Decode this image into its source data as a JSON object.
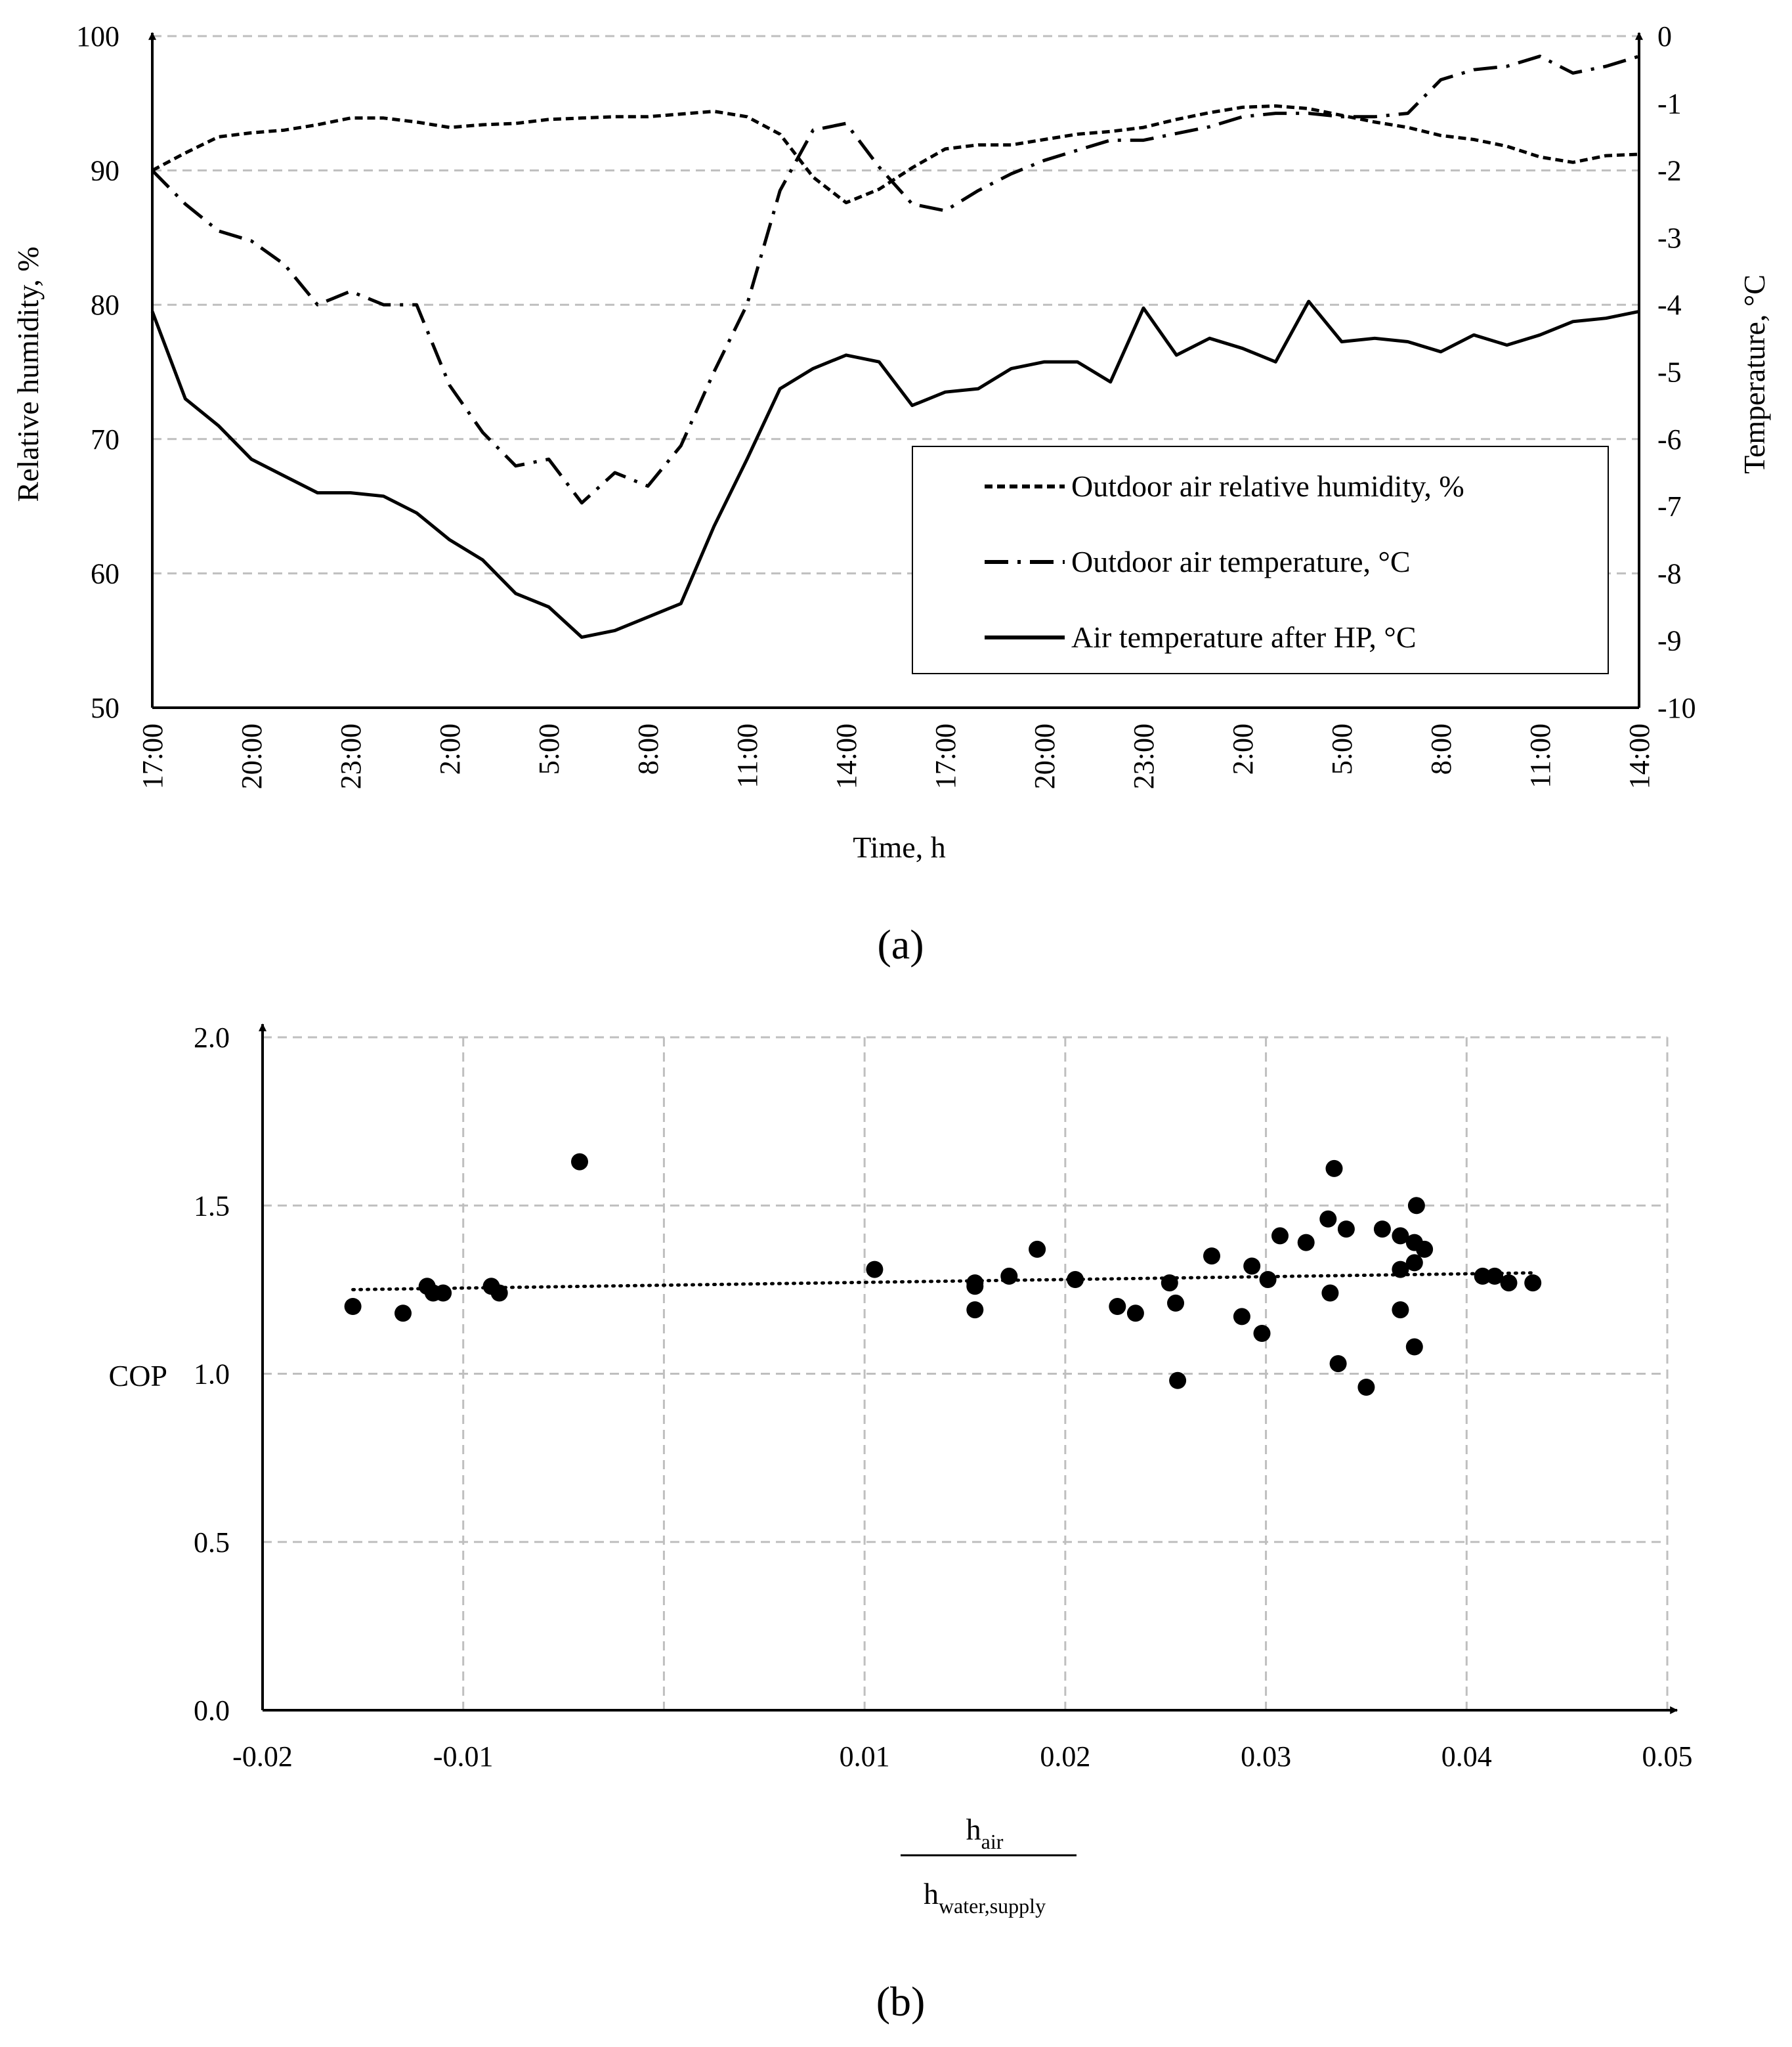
{
  "figure": {
    "caption_a": "(a)",
    "caption_b": "(b)"
  },
  "colors": {
    "ink": "#000000",
    "grid": "#bfbfbf",
    "background": "#ffffff"
  },
  "chart_data": [
    {
      "type": "line",
      "panel": "a",
      "xlabel": "Time, h",
      "ylabel_left": "Relative humidity, %",
      "ylabel_right": "Temperature, °C",
      "ylim_left": [
        50,
        100
      ],
      "ylim_right": [
        -10,
        0
      ],
      "yticks_left": [
        "50",
        "60",
        "70",
        "80",
        "90",
        "100"
      ],
      "yticks_right": [
        "-10",
        "-9",
        "-8",
        "-7",
        "-6",
        "-5",
        "-4",
        "-3",
        "-2",
        "-1",
        "0"
      ],
      "x_hours": [
        0,
        1,
        2,
        3,
        4,
        5,
        6,
        7,
        8,
        9,
        10,
        11,
        12,
        13,
        14,
        15,
        16,
        17,
        18,
        19,
        20,
        21,
        22,
        23,
        24,
        25,
        26,
        27,
        28,
        29,
        30,
        31,
        32,
        33,
        34,
        35,
        36,
        37,
        38,
        39,
        40,
        41,
        42,
        43,
        44,
        45
      ],
      "xtick_positions": [
        0,
        3,
        6,
        9,
        12,
        15,
        18,
        21,
        24,
        27,
        30,
        33,
        36,
        39,
        42,
        45
      ],
      "xtick_labels": [
        "17:00",
        "20:00",
        "23:00",
        "2:00",
        "5:00",
        "8:00",
        "11:00",
        "14:00",
        "17:00",
        "20:00",
        "23:00",
        "2:00",
        "5:00",
        "8:00",
        "11:00",
        "14:00"
      ],
      "legend_position": "lower-right",
      "series": [
        {
          "name": "Outdoor air relative humidity, %",
          "axis": "left",
          "style": "dashed",
          "values": [
            90.0,
            91.3,
            92.5,
            92.8,
            93.0,
            93.4,
            93.9,
            93.9,
            93.6,
            93.2,
            93.4,
            93.5,
            93.8,
            93.9,
            94.0,
            94.0,
            94.2,
            94.4,
            94.0,
            92.7,
            89.5,
            87.6,
            88.6,
            90.2,
            91.6,
            91.9,
            91.9,
            92.3,
            92.7,
            92.9,
            93.2,
            93.8,
            94.3,
            94.7,
            94.8,
            94.6,
            94.1,
            93.6,
            93.2,
            92.6,
            92.3,
            91.8,
            91.0,
            90.6,
            91.1,
            91.2
          ]
        },
        {
          "name": "Outdoor air temperature, °C",
          "axis": "right",
          "style": "dash-dot",
          "values": [
            -2.0,
            -2.5,
            -2.9,
            -3.05,
            -3.4,
            -4.0,
            -3.8,
            -4.0,
            -4.0,
            -5.2,
            -5.9,
            -6.4,
            -6.3,
            -6.95,
            -6.5,
            -6.7,
            -6.1,
            -5.0,
            -4.0,
            -2.3,
            -1.4,
            -1.3,
            -1.95,
            -2.5,
            -2.6,
            -2.3,
            -2.05,
            -1.85,
            -1.7,
            -1.55,
            -1.55,
            -1.45,
            -1.35,
            -1.2,
            -1.15,
            -1.15,
            -1.2,
            -1.2,
            -1.15,
            -0.65,
            -0.5,
            -0.45,
            -0.3,
            -0.55,
            -0.45,
            -0.3
          ]
        },
        {
          "name": "Air temperature after HP, °C",
          "axis": "right",
          "style": "solid",
          "values": [
            -4.1,
            -5.4,
            -5.8,
            -6.3,
            -6.55,
            -6.8,
            -6.8,
            -6.85,
            -7.1,
            -7.5,
            -7.8,
            -8.3,
            -8.5,
            -8.95,
            -8.85,
            -8.65,
            -8.45,
            -7.3,
            -6.3,
            -5.25,
            -4.95,
            -4.75,
            -4.85,
            -5.5,
            -5.3,
            -5.25,
            -4.95,
            -4.85,
            -4.85,
            -5.15,
            -4.05,
            -4.75,
            -4.5,
            -4.65,
            -4.85,
            -3.95,
            -4.55,
            -4.5,
            -4.55,
            -4.7,
            -4.45,
            -4.6,
            -4.45,
            -4.25,
            -4.2,
            -4.1
          ]
        }
      ]
    },
    {
      "type": "scatter",
      "panel": "b",
      "xlabel_numerator": "h",
      "xlabel_numerator_sub": "air",
      "xlabel_denominator": "h",
      "xlabel_denominator_sub": "water,supply",
      "ylabel": "COP",
      "xlim": [
        -0.02,
        0.05
      ],
      "ylim": [
        0.0,
        2.0
      ],
      "xticks": [
        "-0.02",
        "-0.01",
        "0.01",
        "0.02",
        "0.03",
        "0.04",
        "0.05"
      ],
      "xtick_values": [
        -0.02,
        -0.01,
        0.01,
        0.02,
        0.03,
        0.04,
        0.05
      ],
      "yticks": [
        "0.0",
        "0.5",
        "1.0",
        "1.5",
        "2.0"
      ],
      "ytick_values": [
        0.0,
        0.5,
        1.0,
        1.5,
        2.0
      ],
      "trendline": {
        "style": "dotted",
        "x": [
          -0.0155,
          0.0435
        ],
        "y": [
          1.25,
          1.3
        ]
      },
      "points": [
        [
          -0.0155,
          1.2
        ],
        [
          -0.013,
          1.18
        ],
        [
          -0.0118,
          1.26
        ],
        [
          -0.0115,
          1.24
        ],
        [
          -0.011,
          1.24
        ],
        [
          -0.0086,
          1.26
        ],
        [
          -0.0082,
          1.24
        ],
        [
          -0.0042,
          1.63
        ],
        [
          0.0105,
          1.31
        ],
        [
          0.0155,
          1.26
        ],
        [
          0.0155,
          1.19
        ],
        [
          0.0155,
          1.27
        ],
        [
          0.0172,
          1.29
        ],
        [
          0.0186,
          1.37
        ],
        [
          0.0205,
          1.28
        ],
        [
          0.0226,
          1.2
        ],
        [
          0.0235,
          1.18
        ],
        [
          0.0252,
          1.27
        ],
        [
          0.0255,
          1.21
        ],
        [
          0.0256,
          0.98
        ],
        [
          0.0273,
          1.35
        ],
        [
          0.0288,
          1.17
        ],
        [
          0.0293,
          1.32
        ],
        [
          0.0298,
          1.12
        ],
        [
          0.0301,
          1.28
        ],
        [
          0.0307,
          1.41
        ],
        [
          0.032,
          1.39
        ],
        [
          0.0331,
          1.46
        ],
        [
          0.0332,
          1.24
        ],
        [
          0.0334,
          1.61
        ],
        [
          0.0336,
          1.03
        ],
        [
          0.034,
          1.43
        ],
        [
          0.035,
          0.96
        ],
        [
          0.0358,
          1.43
        ],
        [
          0.0367,
          1.41
        ],
        [
          0.0367,
          1.31
        ],
        [
          0.0367,
          1.19
        ],
        [
          0.0374,
          1.39
        ],
        [
          0.0374,
          1.33
        ],
        [
          0.0374,
          1.08
        ],
        [
          0.0375,
          1.5
        ],
        [
          0.0379,
          1.37
        ],
        [
          0.0408,
          1.29
        ],
        [
          0.0414,
          1.29
        ],
        [
          0.0421,
          1.27
        ],
        [
          0.0433,
          1.27
        ]
      ]
    }
  ]
}
